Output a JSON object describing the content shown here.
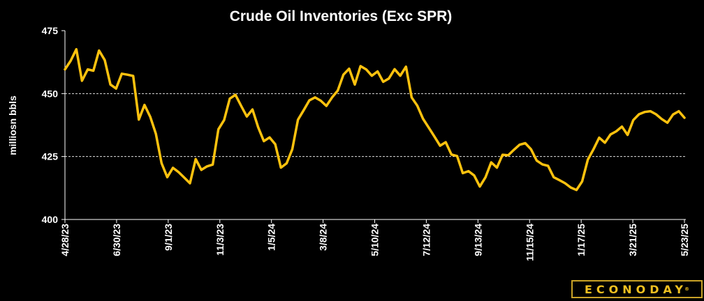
{
  "brand": "ECONODAY",
  "brand_mark": "®",
  "chart_data": {
    "type": "line",
    "title": "Crude Oil Inventories (Exc SPR)",
    "ylabel": "milliosn bbls",
    "xlabel": "",
    "ylim": [
      400,
      475
    ],
    "yticks": [
      400,
      425,
      450,
      475
    ],
    "grid": "horizontal dashed",
    "x_start": "4/28/23",
    "x_end": "5/23/25",
    "xtick_labels": [
      "4/28/23",
      "6/30/23",
      "9/1/23",
      "11/3/23",
      "1/5/24",
      "3/8/24",
      "5/10/24",
      "7/12/24",
      "9/13/24",
      "11/15/24",
      "1/17/25",
      "3/21/25",
      "5/23/25"
    ],
    "series": [
      {
        "color": "#FFC20E",
        "values": [
          459.6,
          463,
          467.6,
          455.1,
          459.6,
          459.1,
          467.1,
          463.3,
          453.6,
          452,
          457.9,
          457.5,
          457,
          439.7,
          445.5,
          440.8,
          434,
          422.4,
          416.8,
          420.5,
          418.8,
          416.6,
          414.4,
          424,
          419.7,
          421.1,
          421.8,
          435.8,
          439.5,
          448,
          449.5,
          445.1,
          440.9,
          443.7,
          436.6,
          431.1,
          432.6,
          429.9,
          420.6,
          422.3,
          427.9,
          439.6,
          443.4,
          447.3,
          448.5,
          447.2,
          445.1,
          448.5,
          451.2,
          457.5,
          459.9,
          453.6,
          460.9,
          459.6,
          457.1,
          458.8,
          454.7,
          456,
          459.7,
          457.1,
          460.7,
          448.5,
          445.2,
          440,
          436.5,
          433,
          429.3,
          430.7,
          425.8,
          425.2,
          418.4,
          419.2,
          417.5,
          413.1,
          416.8,
          422.7,
          420.6,
          425.7,
          425.5,
          427.7,
          429.7,
          430.3,
          427.9,
          423.4,
          421.9,
          421.3,
          416.8,
          415.6,
          414.4,
          412.7,
          411.7,
          415.1,
          423.8,
          427.9,
          432.5,
          430.5,
          433.8,
          435,
          436.9,
          433.6,
          439.5,
          441.8,
          442.7,
          443,
          441.8,
          439.9,
          438.4,
          441.7,
          443,
          440.4
        ]
      }
    ]
  }
}
